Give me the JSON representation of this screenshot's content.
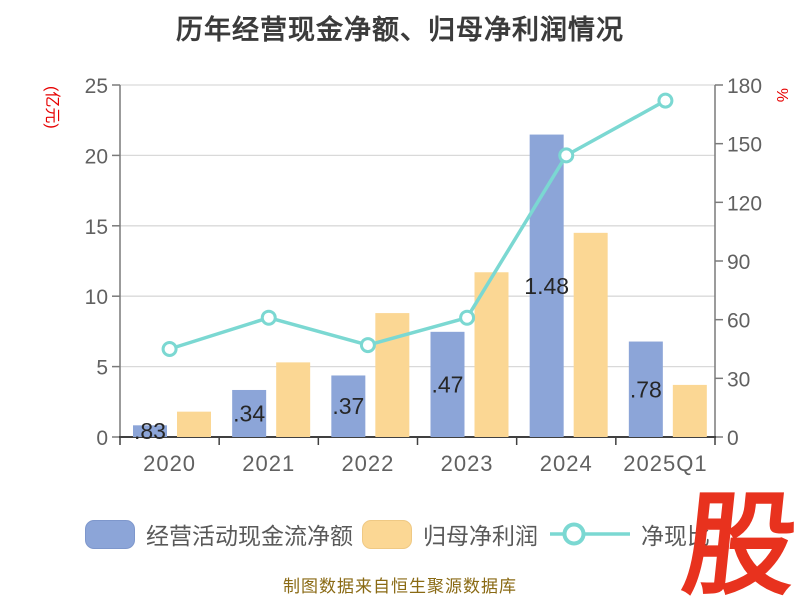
{
  "title": "历年经营现金净额、归母净利润情况",
  "footer_note": "制图数据来自恒生聚源数据库",
  "logo_text": "股",
  "left_axis": {
    "unit": "(亿元)",
    "ticks": [
      0,
      5,
      10,
      15,
      20,
      25
    ],
    "max": 25
  },
  "right_axis": {
    "unit": "%",
    "ticks": [
      0,
      30,
      60,
      90,
      120,
      150,
      180
    ],
    "max": 180
  },
  "legend": [
    {
      "label": "经营活动现金流净额",
      "kind": "bar",
      "color": "#8CA5D8"
    },
    {
      "label": "归母净利润",
      "kind": "bar",
      "color": "#FBD794"
    },
    {
      "label": "净现比",
      "kind": "line",
      "color": "#7BD8D2"
    }
  ],
  "chart_data": {
    "type": "bar+line",
    "title": "历年经营现金净额、归母净利润情况",
    "categories": [
      "2020",
      "2021",
      "2022",
      "2023",
      "2024",
      "2025Q1"
    ],
    "series": [
      {
        "name": "经营活动现金流净额",
        "kind": "bar",
        "axis": "left",
        "color": "#8CA5D8",
        "values": [
          0.83,
          3.34,
          4.37,
          7.47,
          21.48,
          6.78
        ],
        "visible_labels": [
          ".83",
          ".34",
          ".37",
          ".47",
          "1.48",
          ".78"
        ]
      },
      {
        "name": "归母净利润",
        "kind": "bar",
        "axis": "left",
        "color": "#FBD794",
        "values": [
          1.8,
          5.3,
          8.8,
          11.7,
          14.5,
          3.7
        ]
      },
      {
        "name": "净现比",
        "kind": "line",
        "axis": "right",
        "color": "#7BD8D2",
        "values": [
          45,
          61,
          47,
          61,
          144,
          172
        ]
      }
    ],
    "xlabel": "",
    "ylabel_left": "(亿元)",
    "ylabel_right": "%",
    "ylim_left": [
      0,
      25
    ],
    "ylim_right": [
      0,
      180
    ],
    "grid": true,
    "legend_position": "bottom"
  },
  "colors": {
    "blue": "#8CA5D8",
    "orange": "#FBD794",
    "line": "#7BD8D2",
    "grid": "#D9D9D9",
    "axis": "#7A7A7A",
    "axis_dark": "#404040",
    "tick_text": "#616161",
    "bar_label": "#262626",
    "unit_red": "#E60000",
    "title_color": "#3B3B3B",
    "legend_text": "#595959",
    "footer_color": "#8A6A14",
    "logo_red": "#E8321E"
  }
}
